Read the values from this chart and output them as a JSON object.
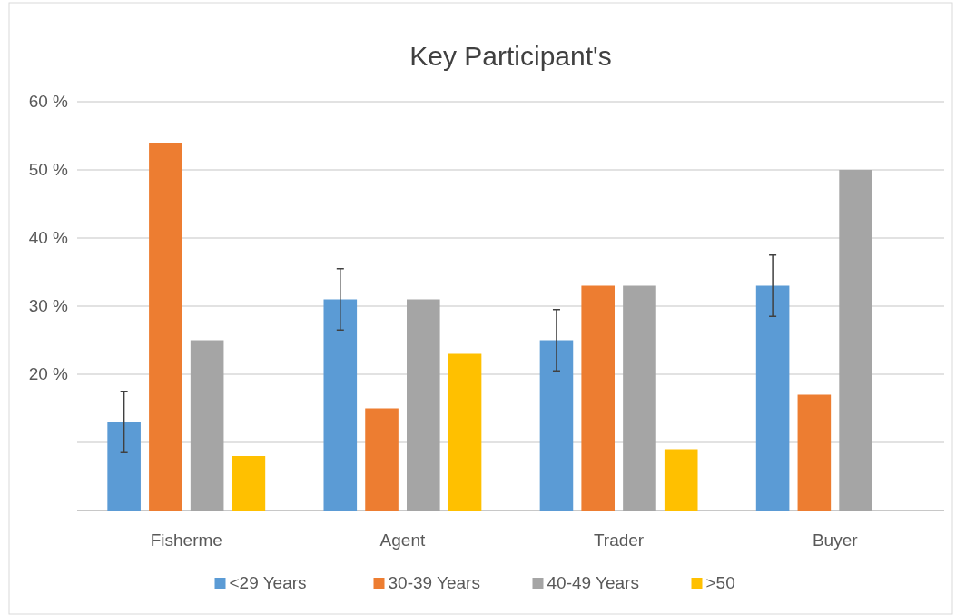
{
  "chart_data": {
    "type": "bar",
    "title": "Key Participant's",
    "categories": [
      "Fisherme",
      "Agent",
      "Trader",
      "Buyer"
    ],
    "series": [
      {
        "name": "<29 Years",
        "color": "#5b9bd5",
        "values": [
          13,
          31,
          25,
          33
        ],
        "errors": [
          4.5,
          4.5,
          4.5,
          4.5
        ]
      },
      {
        "name": "30-39 Years",
        "color": "#ed7d31",
        "values": [
          54,
          15,
          33,
          17
        ]
      },
      {
        "name": "40-49 Years",
        "color": "#a5a5a5",
        "values": [
          25,
          31,
          33,
          50
        ]
      },
      {
        "name": ">50",
        "color": "#ffc000",
        "values": [
          8,
          23,
          9,
          null
        ]
      }
    ],
    "ylim": [
      0,
      60
    ],
    "yticks": [
      {
        "value": 0,
        "label": null
      },
      {
        "value": 10,
        "label": null
      },
      {
        "value": 20,
        "label": "20 %"
      },
      {
        "value": 30,
        "label": "30 %"
      },
      {
        "value": 40,
        "label": "40 %"
      },
      {
        "value": 50,
        "label": "50 %"
      },
      {
        "value": 60,
        "label": "60 %"
      }
    ],
    "grid": "y",
    "legend": "bottom"
  }
}
